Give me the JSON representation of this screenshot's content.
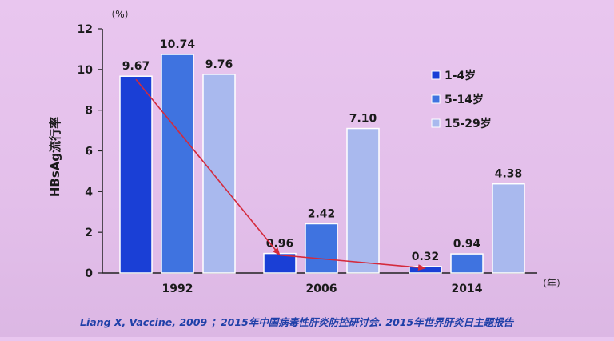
{
  "chart_data": {
    "type": "bar",
    "ylabel": "HBsAg流行率",
    "y_unit": "（%）",
    "x_unit": "（年）",
    "ylim": [
      0,
      12
    ],
    "yticks": [
      0,
      2,
      4,
      6,
      8,
      10,
      12
    ],
    "categories": [
      "1992",
      "2006",
      "2014"
    ],
    "series": [
      {
        "name": "1-4岁",
        "values": [
          9.67,
          0.96,
          0.32
        ],
        "labels": [
          "9.67",
          "0.96",
          "0.32"
        ],
        "color": "#1a3fd6"
      },
      {
        "name": "5-14岁",
        "values": [
          10.74,
          2.42,
          0.94
        ],
        "labels": [
          "10.74",
          "2.42",
          "0.94"
        ],
        "color": "#3f73e0"
      },
      {
        "name": "15-29岁",
        "values": [
          9.76,
          7.1,
          4.38
        ],
        "labels": [
          "9.76",
          "7.10",
          "4.38"
        ],
        "color": "#a9b9ee"
      }
    ],
    "trend_arrow": {
      "series": "1-4岁",
      "color": "#d42a3c"
    },
    "legend_position": "right",
    "grid": false
  },
  "footer": {
    "citation": "Liang X, Vaccine, 2009 ；2015年中国病毒性肝炎防控研讨会. 2015年世界肝炎日主题报告",
    "color": "#1f3fa8"
  }
}
